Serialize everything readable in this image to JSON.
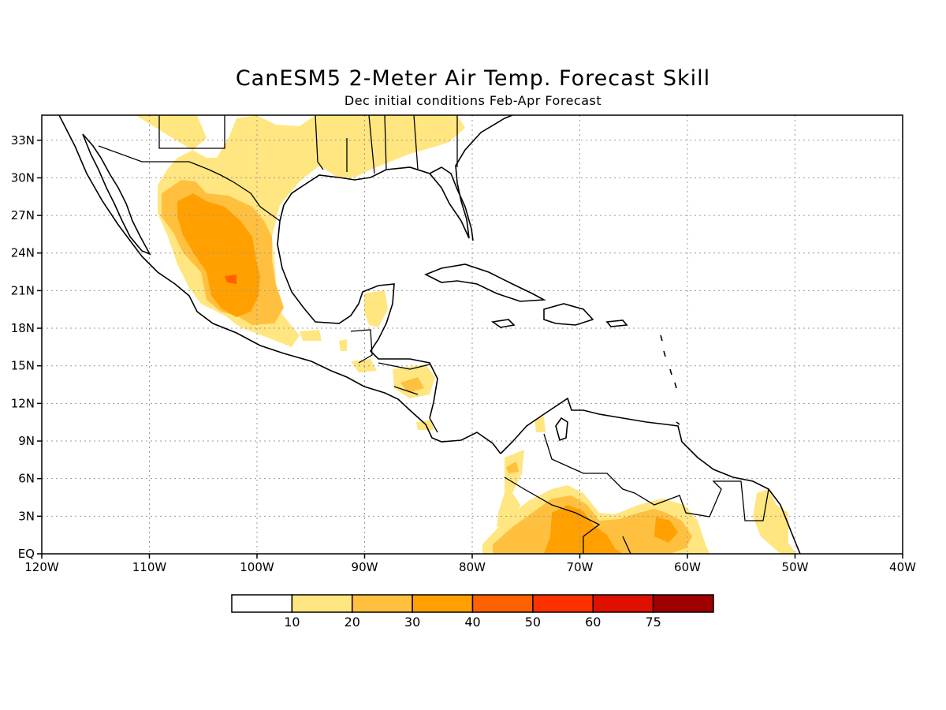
{
  "title": "CanESM5 2-Meter Air Temp. Forecast Skill",
  "subtitle": "Dec initial conditions  Feb-Apr Forecast",
  "map": {
    "projection": "lat-lon",
    "lon_range": [
      -120,
      -40
    ],
    "lat_range": [
      0,
      35
    ],
    "x_tick_labels": [
      "120W",
      "110W",
      "100W",
      "90W",
      "80W",
      "70W",
      "60W",
      "50W",
      "40W"
    ],
    "y_tick_labels": [
      "EQ",
      "3N",
      "6N",
      "9N",
      "12N",
      "15N",
      "18N",
      "21N",
      "24N",
      "27N",
      "30N",
      "33N"
    ],
    "grid": "dotted",
    "coastline_color": "#000000"
  },
  "legend": {
    "placement": "bottom-center",
    "thresholds": [
      "10",
      "20",
      "30",
      "40",
      "50",
      "60",
      "75"
    ],
    "colors": [
      "#ffffff",
      "#ffe680",
      "#ffc040",
      "#ffa000",
      "#ff6000",
      "#ff3000",
      "#e01000",
      "#a00000"
    ]
  }
}
